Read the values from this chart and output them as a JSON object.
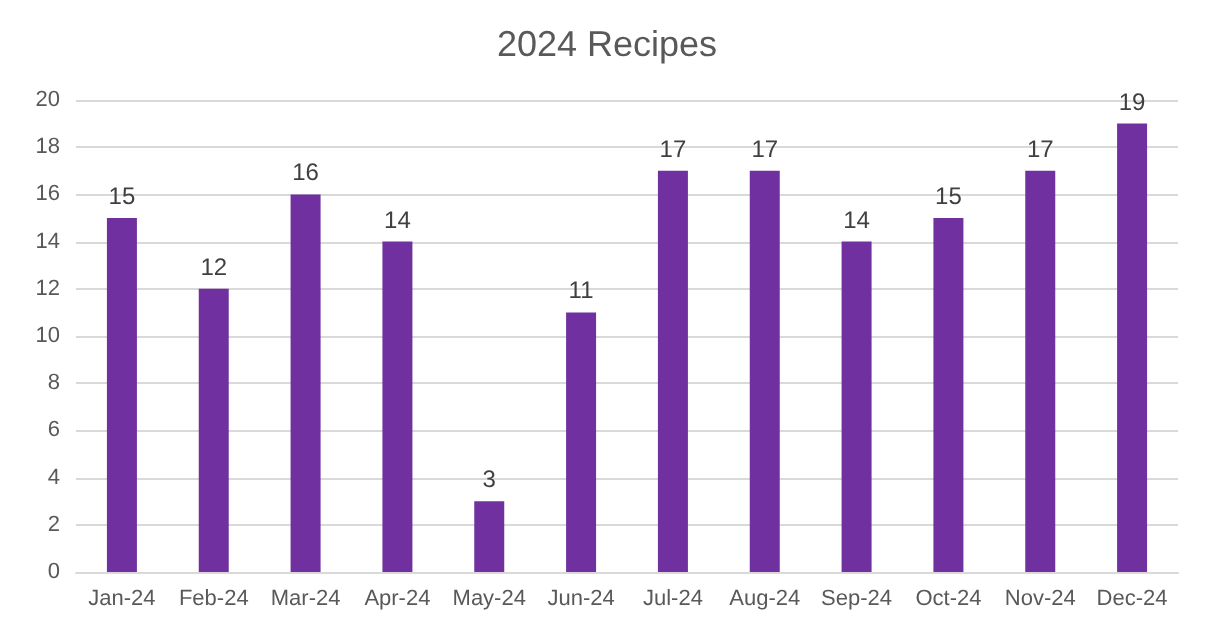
{
  "chart_data": {
    "type": "bar",
    "title": "2024 Recipes",
    "categories": [
      "Jan-24",
      "Feb-24",
      "Mar-24",
      "Apr-24",
      "May-24",
      "Jun-24",
      "Jul-24",
      "Aug-24",
      "Sep-24",
      "Oct-24",
      "Nov-24",
      "Dec-24"
    ],
    "values": [
      15,
      12,
      16,
      14,
      3,
      11,
      17,
      17,
      14,
      15,
      17,
      19
    ],
    "color": "#7030a0",
    "ylim": [
      0,
      20
    ],
    "yticks": [
      0,
      2,
      4,
      6,
      8,
      10,
      12,
      14,
      16,
      18,
      20
    ],
    "grid": "y",
    "data_labels": true
  }
}
